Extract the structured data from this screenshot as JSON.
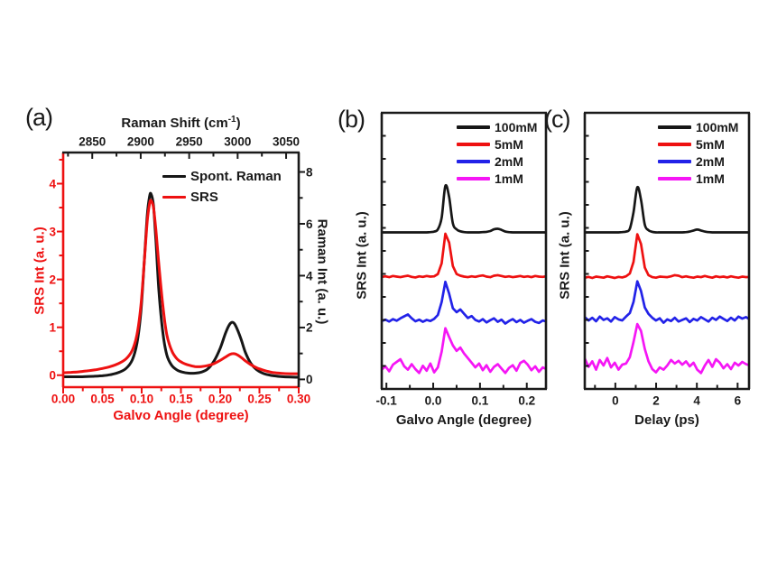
{
  "figure": {
    "background": "#ffffff",
    "colors": {
      "black": "#161616",
      "red": "#ee1111",
      "blue": "#2222e8",
      "magenta": "#f516f5"
    }
  },
  "chart_data": [
    {
      "panel_label": "(a)",
      "type": "line",
      "axes": {
        "top": {
          "label_pre": "Raman Shift (cm",
          "label_sup": "-1",
          "label_post": ")",
          "color": "#1a1a1a",
          "range": [
            2820,
            3063
          ],
          "ticks": "in",
          "major": [
            2850,
            2900,
            2950,
            3000,
            3050
          ],
          "labels": [
            "2850",
            "2900",
            "2950",
            "3000",
            "3050"
          ],
          "minor": [
            2825,
            2875,
            2925,
            2975,
            3025
          ]
        },
        "bottom": {
          "label": "Galvo Angle (degree)",
          "color": "#ee1111",
          "range": [
            0,
            0.3
          ],
          "ticks": "out",
          "major": [
            0,
            0.05,
            0.1,
            0.15,
            0.2,
            0.25,
            0.3
          ],
          "labels": [
            "0.00",
            "0.05",
            "0.10",
            "0.15",
            "0.20",
            "0.25",
            "0.30"
          ],
          "minor": [
            0.025,
            0.075,
            0.125,
            0.175,
            0.225,
            0.275
          ]
        },
        "left": {
          "label": "SRS Int (a. u.)",
          "color": "#ee1111",
          "range": [
            -0.25,
            4.65
          ],
          "ticks": "out",
          "major": [
            0,
            1,
            2,
            3,
            4
          ],
          "labels": [
            "0",
            "1",
            "2",
            "3",
            "4"
          ],
          "minor": [
            0.5,
            1.5,
            2.5,
            3.5,
            4.5
          ]
        },
        "right": {
          "label": "Raman Int (a. u.)",
          "color": "#1a1a1a",
          "range": [
            -0.3,
            8.75
          ],
          "ticks": "out",
          "major": [
            0,
            2,
            4,
            6,
            8
          ],
          "labels": [
            "0",
            "2",
            "4",
            "6",
            "8"
          ],
          "minor": [
            1,
            3,
            5,
            7
          ]
        }
      },
      "legend": [
        {
          "label": "Spont. Raman",
          "color": "#161616"
        },
        {
          "label": "SRS",
          "color": "#ee1111"
        }
      ],
      "series": [
        {
          "name": "Spont. Raman",
          "color": "#161616",
          "axis": "right",
          "smooth": true,
          "x": [
            0.0,
            0.01,
            0.02,
            0.03,
            0.04,
            0.05,
            0.06,
            0.07,
            0.08,
            0.088,
            0.094,
            0.099,
            0.103,
            0.107,
            0.11,
            0.112,
            0.115,
            0.118,
            0.122,
            0.127,
            0.132,
            0.138,
            0.145,
            0.152,
            0.16,
            0.168,
            0.176,
            0.184,
            0.192,
            0.2,
            0.207,
            0.212,
            0.216,
            0.22,
            0.226,
            0.232,
            0.239,
            0.247,
            0.256,
            0.266,
            0.277,
            0.289,
            0.3
          ],
          "y": [
            0.1,
            0.1,
            0.1,
            0.11,
            0.12,
            0.14,
            0.18,
            0.26,
            0.42,
            0.75,
            1.4,
            2.6,
            4.4,
            6.3,
            7.05,
            7.15,
            6.7,
            5.4,
            3.4,
            1.8,
            0.95,
            0.55,
            0.36,
            0.28,
            0.24,
            0.24,
            0.28,
            0.4,
            0.7,
            1.2,
            1.8,
            2.12,
            2.2,
            2.05,
            1.6,
            1.05,
            0.62,
            0.36,
            0.22,
            0.15,
            0.11,
            0.09,
            0.08
          ]
        },
        {
          "name": "SRS",
          "color": "#ee1111",
          "axis": "left",
          "smooth": true,
          "x": [
            0.0,
            0.01,
            0.02,
            0.03,
            0.04,
            0.05,
            0.06,
            0.07,
            0.08,
            0.088,
            0.094,
            0.099,
            0.103,
            0.107,
            0.11,
            0.112,
            0.115,
            0.118,
            0.122,
            0.127,
            0.132,
            0.138,
            0.145,
            0.152,
            0.16,
            0.168,
            0.176,
            0.184,
            0.192,
            0.2,
            0.207,
            0.212,
            0.216,
            0.22,
            0.226,
            0.232,
            0.239,
            0.247,
            0.256,
            0.266,
            0.277,
            0.289,
            0.3
          ],
          "y": [
            0.05,
            0.06,
            0.07,
            0.09,
            0.11,
            0.14,
            0.18,
            0.24,
            0.34,
            0.52,
            0.85,
            1.45,
            2.3,
            3.2,
            3.58,
            3.65,
            3.5,
            3.05,
            2.3,
            1.45,
            0.85,
            0.52,
            0.34,
            0.26,
            0.21,
            0.18,
            0.18,
            0.2,
            0.24,
            0.31,
            0.38,
            0.43,
            0.45,
            0.44,
            0.38,
            0.3,
            0.22,
            0.15,
            0.1,
            0.06,
            0.04,
            0.03,
            0.03
          ]
        }
      ]
    },
    {
      "panel_label": "(b)",
      "type": "line",
      "axes": {
        "bottom": {
          "label": "Galvo Angle (degree)",
          "color": "#1a1a1a",
          "range": [
            -0.11,
            0.241
          ],
          "ticks": "in",
          "major": [
            -0.1,
            0.0,
            0.1,
            0.2
          ],
          "labels": [
            "-0.1",
            "0.0",
            "0.1",
            "0.2"
          ],
          "minor": [
            -0.05,
            0.05,
            0.15
          ]
        },
        "left": {
          "label": "SRS Int (a. u.)",
          "color": "#1a1a1a",
          "range": [
            0,
            10
          ],
          "ticks": "in",
          "major": [],
          "labels": [],
          "minor_count": 12
        }
      },
      "legend": [
        {
          "label": "100mM",
          "color": "#161616"
        },
        {
          "label": "5mM",
          "color": "#ee1111"
        },
        {
          "label": "2mM",
          "color": "#2222e8"
        },
        {
          "label": "1mM",
          "color": "#f516f5"
        }
      ],
      "series": [
        {
          "name": "100mM",
          "color": "#161616",
          "axis": "left",
          "smooth": true,
          "x_start": -0.11,
          "x_step": 0.008,
          "y": [
            5.67,
            5.67,
            5.67,
            5.67,
            5.67,
            5.67,
            5.67,
            5.67,
            5.67,
            5.67,
            5.67,
            5.67,
            5.67,
            5.68,
            5.7,
            5.78,
            6.2,
            7.35,
            6.95,
            6.0,
            5.78,
            5.71,
            5.68,
            5.67,
            5.67,
            5.67,
            5.67,
            5.68,
            5.69,
            5.72,
            5.78,
            5.8,
            5.76,
            5.7,
            5.68,
            5.67,
            5.67,
            5.67,
            5.67,
            5.67,
            5.67,
            5.67,
            5.67,
            5.67,
            5.67
          ]
        },
        {
          "name": "5mM",
          "color": "#ee1111",
          "axis": "left",
          "smooth": false,
          "x_start": -0.11,
          "x_step": 0.008,
          "y": [
            4.06,
            4.08,
            4.05,
            4.09,
            4.07,
            4.05,
            4.08,
            4.1,
            4.06,
            4.04,
            4.08,
            4.06,
            4.09,
            4.07,
            4.08,
            4.16,
            4.55,
            5.62,
            5.3,
            4.45,
            4.16,
            4.1,
            4.07,
            4.05,
            4.08,
            4.06,
            4.09,
            4.11,
            4.07,
            4.05,
            4.1,
            4.12,
            4.09,
            4.06,
            4.08,
            4.05,
            4.07,
            4.09,
            4.06,
            4.08,
            4.05,
            4.09,
            4.07,
            4.06,
            4.08
          ]
        },
        {
          "name": "2mM",
          "color": "#2222e8",
          "axis": "left",
          "smooth": false,
          "x_start": -0.11,
          "x_step": 0.008,
          "y": [
            2.46,
            2.51,
            2.44,
            2.53,
            2.47,
            2.56,
            2.63,
            2.7,
            2.56,
            2.45,
            2.51,
            2.43,
            2.5,
            2.46,
            2.54,
            2.68,
            3.15,
            3.88,
            3.45,
            2.92,
            2.78,
            2.88,
            2.72,
            2.57,
            2.64,
            2.5,
            2.44,
            2.53,
            2.41,
            2.49,
            2.56,
            2.43,
            2.51,
            2.37,
            2.46,
            2.53,
            2.42,
            2.5,
            2.4,
            2.47,
            2.53,
            2.43,
            2.39,
            2.48,
            2.44
          ]
        },
        {
          "name": "1mM",
          "color": "#f516f5",
          "axis": "left",
          "smooth": false,
          "x_start": -0.11,
          "x_step": 0.008,
          "y": [
            0.7,
            0.82,
            0.64,
            0.88,
            0.98,
            1.08,
            0.82,
            0.7,
            0.9,
            0.72,
            0.58,
            0.84,
            0.66,
            0.92,
            0.6,
            0.78,
            1.35,
            2.2,
            1.88,
            1.58,
            1.38,
            1.5,
            1.28,
            1.12,
            0.95,
            0.78,
            0.92,
            0.68,
            0.86,
            0.62,
            0.8,
            0.9,
            0.74,
            0.58,
            0.76,
            0.86,
            0.66,
            0.94,
            1.02,
            0.88,
            0.68,
            0.82,
            0.62,
            0.78,
            0.72
          ]
        }
      ]
    },
    {
      "panel_label": "(c)",
      "type": "line",
      "axes": {
        "bottom": {
          "label": "Delay (ps)",
          "color": "#1a1a1a",
          "range": [
            -1.5,
            6.56
          ],
          "ticks": "in",
          "major": [
            0,
            2,
            4,
            6
          ],
          "labels": [
            "0",
            "2",
            "4",
            "6"
          ],
          "minor": [
            -1,
            1,
            3,
            5
          ]
        },
        "left": {
          "label": "SRS Int (a. u.)",
          "color": "#1a1a1a",
          "range": [
            0,
            10
          ],
          "ticks": "in",
          "major": [],
          "labels": [],
          "minor_count": 12
        }
      },
      "legend": [
        {
          "label": "100mM",
          "color": "#161616"
        },
        {
          "label": "5mM",
          "color": "#ee1111"
        },
        {
          "label": "2mM",
          "color": "#2222e8"
        },
        {
          "label": "1mM",
          "color": "#f516f5"
        }
      ],
      "series": [
        {
          "name": "100mM",
          "color": "#161616",
          "axis": "left",
          "smooth": true,
          "x_start": -1.5,
          "x_step": 0.184,
          "y": [
            5.67,
            5.67,
            5.67,
            5.67,
            5.67,
            5.67,
            5.67,
            5.67,
            5.67,
            5.67,
            5.68,
            5.7,
            5.8,
            6.4,
            7.3,
            6.85,
            5.95,
            5.75,
            5.69,
            5.67,
            5.67,
            5.67,
            5.67,
            5.67,
            5.67,
            5.67,
            5.67,
            5.68,
            5.7,
            5.74,
            5.77,
            5.74,
            5.7,
            5.68,
            5.67,
            5.67,
            5.67,
            5.67,
            5.67,
            5.67,
            5.67,
            5.67,
            5.67,
            5.67,
            5.67
          ]
        },
        {
          "name": "5mM",
          "color": "#ee1111",
          "axis": "left",
          "smooth": false,
          "x_start": -1.5,
          "x_step": 0.184,
          "y": [
            4.03,
            4.06,
            4.02,
            4.07,
            4.05,
            4.03,
            4.08,
            4.05,
            4.02,
            4.06,
            4.04,
            4.08,
            4.18,
            4.6,
            5.6,
            5.25,
            4.4,
            4.12,
            4.05,
            4.03,
            4.07,
            4.06,
            4.05,
            4.08,
            4.12,
            4.1,
            4.05,
            4.08,
            4.05,
            4.03,
            4.07,
            4.05,
            4.09,
            4.06,
            4.03,
            4.08,
            4.05,
            4.07,
            4.04,
            4.08,
            4.05,
            4.03,
            4.07,
            4.05,
            4.06
          ]
        },
        {
          "name": "2mM",
          "color": "#2222e8",
          "axis": "left",
          "smooth": false,
          "x_start": -1.5,
          "x_step": 0.184,
          "y": [
            2.6,
            2.48,
            2.58,
            2.45,
            2.62,
            2.5,
            2.56,
            2.44,
            2.6,
            2.52,
            2.48,
            2.62,
            2.75,
            3.15,
            3.9,
            3.55,
            2.95,
            2.72,
            2.58,
            2.48,
            2.56,
            2.4,
            2.52,
            2.46,
            2.58,
            2.44,
            2.5,
            2.56,
            2.42,
            2.54,
            2.48,
            2.6,
            2.52,
            2.44,
            2.58,
            2.5,
            2.62,
            2.54,
            2.46,
            2.58,
            2.48,
            2.62,
            2.55,
            2.6,
            2.52
          ]
        },
        {
          "name": "1mM",
          "color": "#f516f5",
          "axis": "left",
          "smooth": false,
          "x_start": -1.5,
          "x_step": 0.184,
          "y": [
            1.1,
            0.8,
            1.0,
            0.7,
            1.05,
            0.85,
            1.12,
            0.78,
            0.95,
            0.7,
            0.88,
            0.92,
            1.15,
            1.7,
            2.35,
            2.1,
            1.45,
            1.0,
            0.72,
            0.6,
            0.78,
            0.7,
            0.85,
            1.05,
            0.92,
            1.02,
            0.88,
            1.0,
            0.82,
            0.95,
            0.7,
            0.58,
            0.85,
            1.05,
            0.8,
            1.08,
            0.95,
            0.75,
            0.9,
            0.72,
            0.95,
            0.85,
            0.98,
            0.9,
            0.85
          ]
        }
      ]
    }
  ]
}
